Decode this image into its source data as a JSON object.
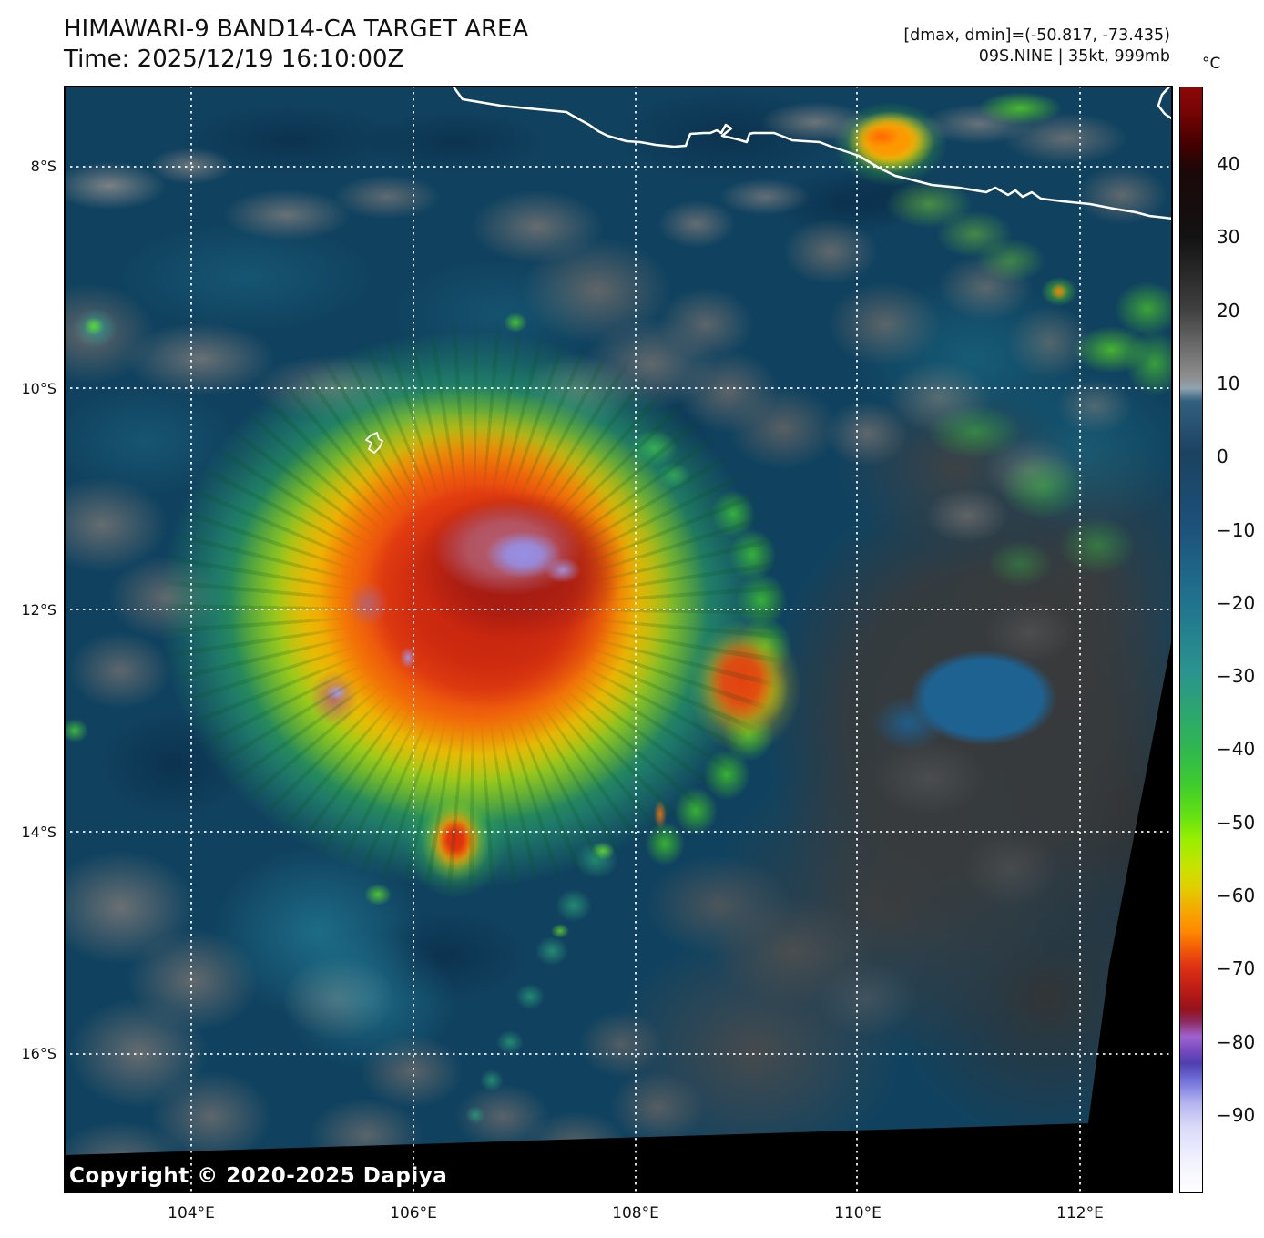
{
  "header": {
    "title": "HIMAWARI-9 BAND14-CA TARGET AREA",
    "time_label": "Time: 2025/12/19 16:10:00Z",
    "dmax_dmin": "[dmax, dmin]=(-50.817, -73.435)",
    "storm_info": "09S.NINE | 35kt, 999mb"
  },
  "colorbar": {
    "unit": "°C",
    "ticks": [
      "40",
      "30",
      "20",
      "10",
      "0",
      "−10",
      "−20",
      "−30",
      "−40",
      "−50",
      "−60",
      "−70",
      "−80",
      "−90"
    ]
  },
  "axes": {
    "lat_labels": [
      "8°S",
      "10°S",
      "12°S",
      "14°S",
      "16°S"
    ],
    "lon_labels": [
      "104°E",
      "106°E",
      "108°E",
      "110°E",
      "112°E"
    ]
  },
  "map": {
    "copyright": "Copyright © 2020-2025 Dapiya"
  },
  "chart_data": {
    "type": "heatmap",
    "title": "HIMAWARI-9 BAND14-CA TARGET AREA",
    "time_utc": "2025/12/19 16:10:00Z",
    "satellite": "HIMAWARI-9",
    "band": "BAND14-CA",
    "product": "TARGET AREA",
    "storm": {
      "id": "09S.NINE",
      "intensity_kt": 35,
      "pressure_mb": 999
    },
    "dmax_c": -50.817,
    "dmin_c": -73.435,
    "colorbar": {
      "unit": "°C",
      "tick_values": [
        40,
        30,
        20,
        10,
        0,
        -10,
        -20,
        -30,
        -40,
        -50,
        -60,
        -70,
        -80,
        -90
      ],
      "range_c": [
        50.5,
        -101
      ]
    },
    "axis": {
      "lon_ticks_e": [
        104,
        106,
        108,
        110,
        112
      ],
      "lat_ticks_s": [
        8,
        10,
        12,
        14,
        16
      ],
      "lon_range_e": [
        102.9,
        112.8
      ],
      "lat_range_s": [
        7.3,
        17.3
      ],
      "grid": "dotted-white"
    },
    "visible_features": [
      "tropical cyclone cloud shield centered near 106.8E 12S with cloud tops -70 to -85C (red/purple)",
      "eastern convective arc near 108.8E 12.5S",
      "small intense cell near 106.1E 13.9S",
      "warm gray low-cloud decks east and southwest",
      "Java south coastline across the top (white)",
      "Christmas Island outline near 105.6E 10.5S",
      "orange cold patch over Java near 110.6E 8S",
      "no-data black wedge at lower right and bottom edge"
    ]
  }
}
